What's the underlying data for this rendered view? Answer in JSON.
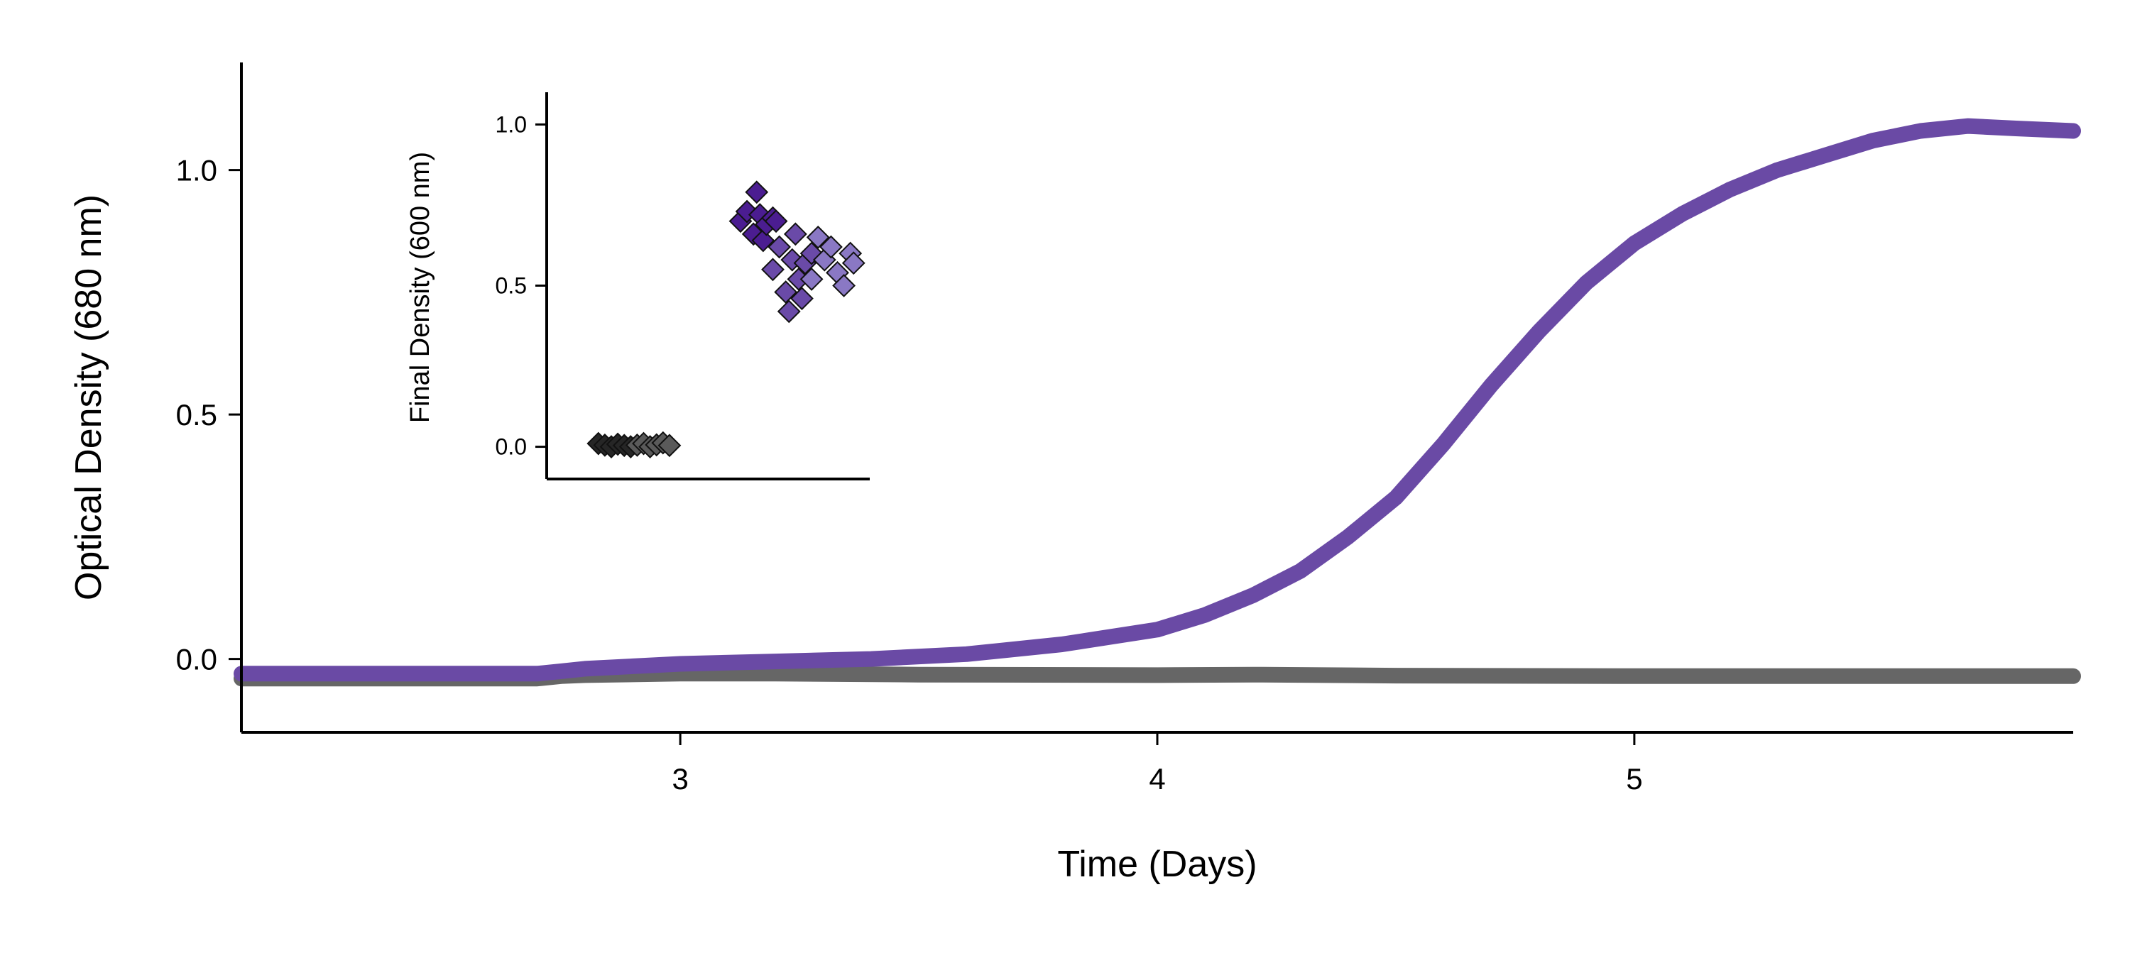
{
  "chart_data": [
    {
      "type": "line",
      "title": "",
      "xlabel": "Time (Days)",
      "ylabel": "Optical Density (680 nm)",
      "xlim": [
        2.08,
        5.92
      ],
      "ylim": [
        -0.15,
        1.22
      ],
      "xticks": [
        3,
        4,
        5
      ],
      "yticks": [
        0.0,
        0.5,
        1.0
      ],
      "xtick_labels": [
        "3",
        "4",
        "5"
      ],
      "ytick_labels": [
        "0.0",
        "0.5",
        "1.0"
      ],
      "grid": false,
      "series": [
        {
          "color": "#666666",
          "x": [
            2.08,
            2.3,
            2.5,
            2.7,
            2.75,
            2.8,
            3.0,
            3.2,
            3.5,
            4.0,
            4.2,
            4.5,
            5.0,
            5.5,
            5.92
          ],
          "y": [
            -0.04,
            -0.04,
            -0.04,
            -0.04,
            -0.035,
            -0.033,
            -0.03,
            -0.03,
            -0.032,
            -0.033,
            -0.032,
            -0.034,
            -0.035,
            -0.035,
            -0.035
          ]
        },
        {
          "color": "#6a4aa5",
          "x": [
            2.08,
            2.3,
            2.5,
            2.7,
            2.75,
            2.8,
            3.0,
            3.2,
            3.4,
            3.6,
            3.8,
            3.9,
            4.0,
            4.1,
            4.2,
            4.3,
            4.4,
            4.5,
            4.6,
            4.7,
            4.8,
            4.9,
            5.0,
            5.1,
            5.2,
            5.3,
            5.4,
            5.5,
            5.6,
            5.7,
            5.8,
            5.92
          ],
          "y": [
            -0.03,
            -0.03,
            -0.03,
            -0.03,
            -0.025,
            -0.02,
            -0.01,
            -0.005,
            0.0,
            0.01,
            0.03,
            0.045,
            0.06,
            0.09,
            0.13,
            0.18,
            0.25,
            0.33,
            0.44,
            0.56,
            0.67,
            0.77,
            0.85,
            0.91,
            0.96,
            1.0,
            1.03,
            1.06,
            1.08,
            1.09,
            1.085,
            1.08
          ]
        }
      ]
    },
    {
      "type": "scatter",
      "title": "",
      "xlabel": "",
      "ylabel": "Final Density (600 nm)",
      "xlim": [
        0,
        1
      ],
      "ylim": [
        -0.1,
        1.1
      ],
      "yticks": [
        0.0,
        0.5,
        1.0
      ],
      "ytick_labels": [
        "0.0",
        "0.5",
        "1.0"
      ],
      "marker": "diamond",
      "series": [
        {
          "color": "#262626",
          "x": [
            0.16,
            0.18,
            0.2,
            0.22,
            0.24,
            0.26
          ],
          "y": [
            0.01,
            0.005,
            0.0,
            0.008,
            0.004,
            0.0
          ]
        },
        {
          "color": "#5a5a5a",
          "x": [
            0.28,
            0.3,
            0.32,
            0.34,
            0.36,
            0.38
          ],
          "y": [
            0.005,
            0.01,
            0.0,
            0.006,
            0.012,
            0.004
          ]
        },
        {
          "color": "#4b1d91",
          "x": [
            0.6,
            0.62,
            0.64,
            0.65,
            0.66,
            0.67,
            0.68,
            0.7,
            0.71
          ],
          "y": [
            0.7,
            0.73,
            0.66,
            0.79,
            0.72,
            0.64,
            0.69,
            0.71,
            0.7
          ]
        },
        {
          "color": "#6a4aa8",
          "x": [
            0.7,
            0.72,
            0.74,
            0.75,
            0.76,
            0.77,
            0.78,
            0.79,
            0.8,
            0.82
          ],
          "y": [
            0.55,
            0.62,
            0.48,
            0.42,
            0.58,
            0.66,
            0.52,
            0.46,
            0.57,
            0.6
          ]
        },
        {
          "color": "#8a78c4",
          "x": [
            0.82,
            0.84,
            0.86,
            0.88,
            0.9,
            0.92,
            0.94,
            0.95
          ],
          "y": [
            0.52,
            0.65,
            0.58,
            0.62,
            0.54,
            0.5,
            0.6,
            0.57
          ]
        }
      ]
    }
  ]
}
